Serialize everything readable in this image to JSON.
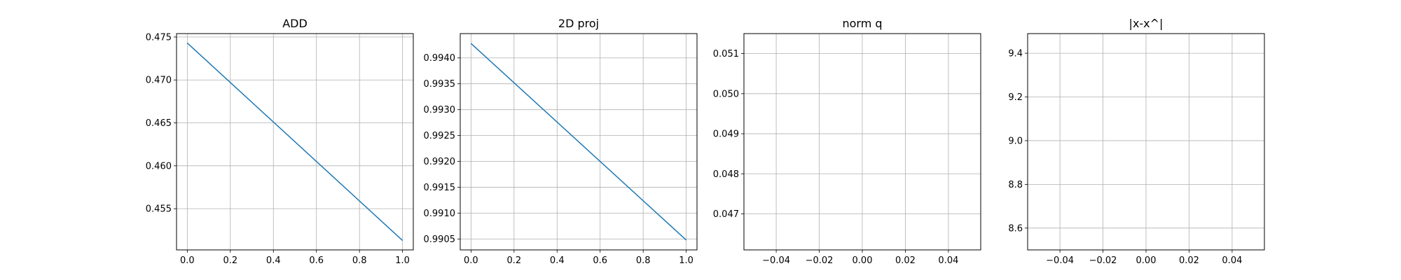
{
  "chart_data": [
    {
      "type": "line",
      "title": "ADD",
      "x": [
        0.0,
        1.0
      ],
      "series": [
        {
          "values": [
            0.4743,
            0.4513
          ],
          "color": "#1f77b4"
        }
      ],
      "xlim": [
        -0.05,
        1.05
      ],
      "ylim": [
        0.4502,
        0.4754
      ],
      "xticks": [
        0.0,
        0.2,
        0.4,
        0.6,
        0.8,
        1.0
      ],
      "xtick_labels": [
        "0.0",
        "0.2",
        "0.4",
        "0.6",
        "0.8",
        "1.0"
      ],
      "yticks": [
        0.455,
        0.46,
        0.465,
        0.47,
        0.475
      ],
      "ytick_labels": [
        "0.455",
        "0.460",
        "0.465",
        "0.470",
        "0.475"
      ],
      "grid": true
    },
    {
      "type": "line",
      "title": "2D proj",
      "x": [
        0.0,
        1.0
      ],
      "series": [
        {
          "values": [
            0.99428,
            0.99048
          ],
          "color": "#1f77b4"
        }
      ],
      "xlim": [
        -0.05,
        1.05
      ],
      "ylim": [
        0.99029,
        0.99447
      ],
      "xticks": [
        0.0,
        0.2,
        0.4,
        0.6,
        0.8,
        1.0
      ],
      "xtick_labels": [
        "0.0",
        "0.2",
        "0.4",
        "0.6",
        "0.8",
        "1.0"
      ],
      "yticks": [
        0.9905,
        0.991,
        0.9915,
        0.992,
        0.9925,
        0.993,
        0.9935,
        0.994
      ],
      "ytick_labels": [
        "0.9905",
        "0.9910",
        "0.9915",
        "0.9920",
        "0.9925",
        "0.9930",
        "0.9935",
        "0.9940"
      ],
      "grid": true
    },
    {
      "type": "line",
      "title": "norm q",
      "x": [],
      "series": [],
      "xlim": [
        -0.055,
        0.055
      ],
      "ylim": [
        0.0461,
        0.0515
      ],
      "xticks": [
        -0.04,
        -0.02,
        0.0,
        0.02,
        0.04
      ],
      "xtick_labels": [
        "−0.04",
        "−0.02",
        "0.00",
        "0.02",
        "0.04"
      ],
      "yticks": [
        0.047,
        0.048,
        0.049,
        0.05,
        0.051
      ],
      "ytick_labels": [
        "0.047",
        "0.048",
        "0.049",
        "0.050",
        "0.051"
      ],
      "grid": true
    },
    {
      "type": "line",
      "title": "|x-x^|",
      "x": [],
      "series": [],
      "xlim": [
        -0.055,
        0.055
      ],
      "ylim": [
        8.5,
        9.49
      ],
      "xticks": [
        -0.04,
        -0.02,
        0.0,
        0.02,
        0.04
      ],
      "xtick_labels": [
        "−0.04",
        "−0.02",
        "0.00",
        "0.02",
        "0.04"
      ],
      "yticks": [
        8.6,
        8.8,
        9.0,
        9.2,
        9.4
      ],
      "ytick_labels": [
        "8.6",
        "8.8",
        "9.0",
        "9.2",
        "9.4"
      ],
      "grid": true
    }
  ]
}
